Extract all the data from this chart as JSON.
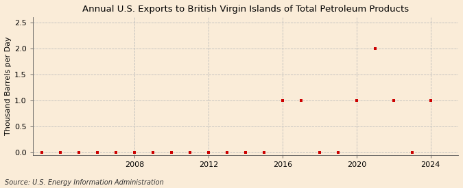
{
  "title": "Annual U.S. Exports to British Virgin Islands of Total Petroleum Products",
  "ylabel": "Thousand Barrels per Day",
  "source": "Source: U.S. Energy Information Administration",
  "background_color": "#faecd8",
  "plot_bg_color": "#faecd8",
  "grid_color": "#bbbbbb",
  "marker_color": "#cc0000",
  "years": [
    2003,
    2004,
    2005,
    2006,
    2007,
    2008,
    2009,
    2010,
    2011,
    2012,
    2013,
    2014,
    2015,
    2016,
    2017,
    2018,
    2019,
    2020,
    2021,
    2022,
    2023,
    2024
  ],
  "values": [
    0.0,
    0.0,
    0.0,
    0.0,
    0.0,
    0.0,
    0.0,
    0.0,
    0.0,
    0.0,
    0.0,
    0.0,
    0.0,
    1.0,
    1.0,
    0.0,
    0.0,
    1.0,
    2.0,
    1.0,
    0.0,
    1.0
  ],
  "xlim": [
    2002.5,
    2025.5
  ],
  "ylim": [
    -0.05,
    2.6
  ],
  "yticks": [
    0.0,
    0.5,
    1.0,
    1.5,
    2.0,
    2.5
  ],
  "xticks": [
    2008,
    2012,
    2016,
    2020,
    2024
  ],
  "title_fontsize": 9.5,
  "axis_fontsize": 8,
  "source_fontsize": 7,
  "ylabel_fontsize": 8
}
